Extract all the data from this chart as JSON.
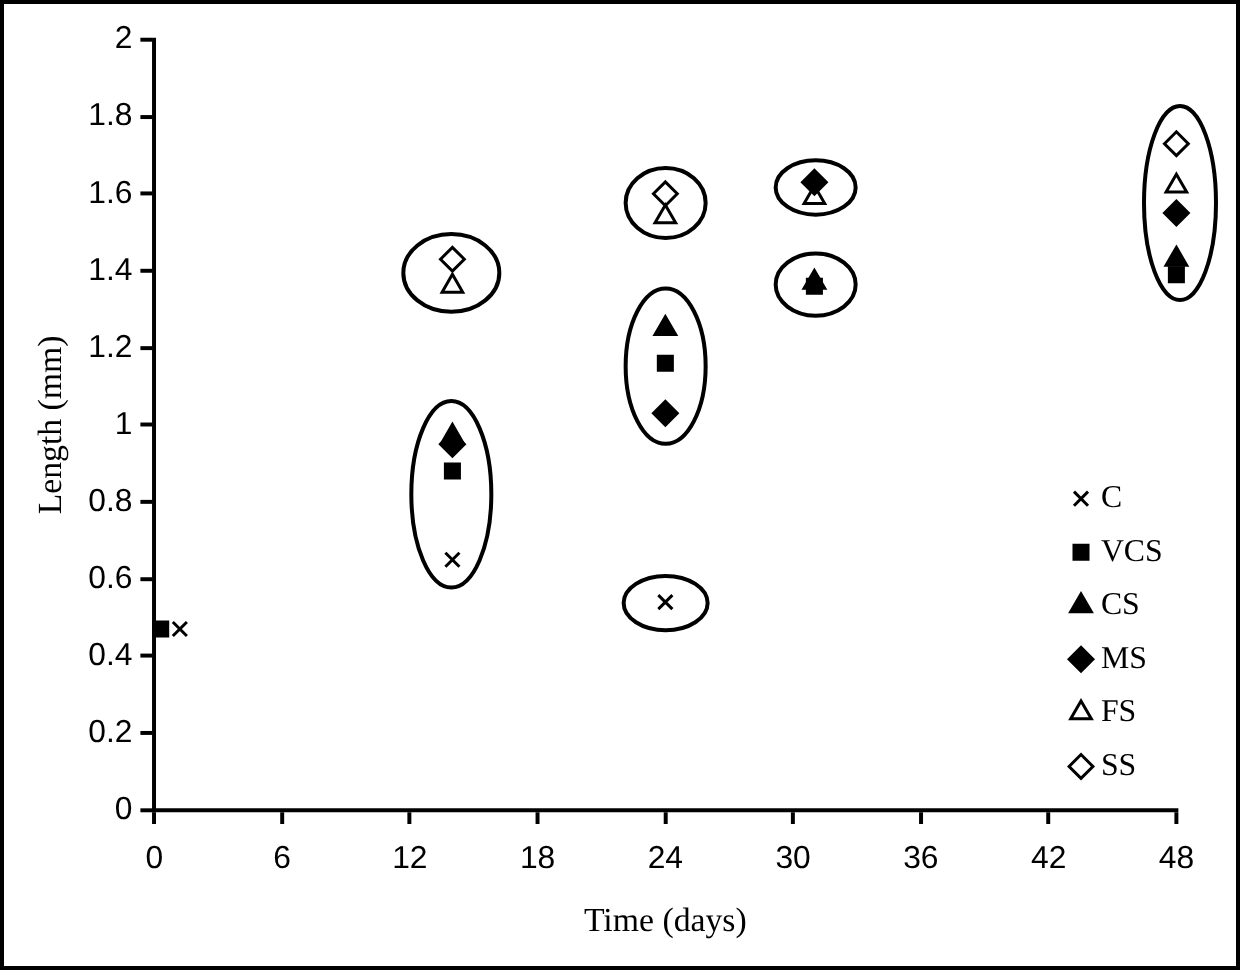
{
  "chart_data": {
    "type": "scatter",
    "xlabel": "Time (days)",
    "ylabel": "Length (mm)",
    "x": [
      0.3,
      14,
      24,
      31,
      48
    ],
    "xlim": [
      0,
      48
    ],
    "xticks": [
      0,
      6,
      12,
      18,
      24,
      30,
      36,
      42,
      48
    ],
    "ylim": [
      0,
      2
    ],
    "yticks": [
      0,
      0.2,
      0.4,
      0.6,
      0.8,
      1,
      1.2,
      1.4,
      1.6,
      1.8,
      2
    ],
    "grid": false,
    "legend": "right",
    "series": [
      {
        "name": "C",
        "color": "#000000",
        "marker": "cross",
        "x": [
          1.2,
          14,
          24
        ],
        "values": [
          0.47,
          0.65,
          0.54
        ]
      },
      {
        "name": "VCS",
        "color": "#000000",
        "marker": "square",
        "values": [
          0.47,
          0.88,
          1.16,
          1.36,
          1.39
        ]
      },
      {
        "name": "CS",
        "color": "#000000",
        "marker": "triangle",
        "values": [
          null,
          0.97,
          1.25,
          1.37,
          1.43
        ]
      },
      {
        "name": "MS",
        "color": "#000000",
        "marker": "diamond",
        "values": [
          null,
          0.95,
          1.03,
          1.63,
          1.55
        ]
      },
      {
        "name": "FS",
        "color": "#ffffff",
        "marker": "triangle",
        "values": [
          null,
          1.36,
          1.54,
          1.59,
          1.62
        ]
      },
      {
        "name": "SS",
        "color": "#ffffff",
        "marker": "diamond",
        "values": [
          null,
          1.43,
          1.6,
          null,
          1.73
        ]
      }
    ]
  }
}
